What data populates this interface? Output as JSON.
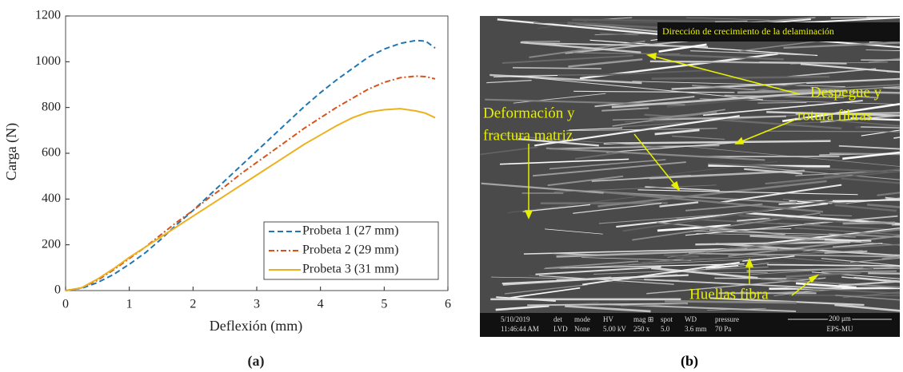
{
  "chart_data": {
    "type": "line",
    "xlabel": "Deflexión (mm)",
    "ylabel": "Carga (N)",
    "caption": "(a)",
    "x": [
      0,
      0.25,
      0.5,
      0.75,
      1,
      1.25,
      1.5,
      1.75,
      2,
      2.25,
      2.5,
      2.75,
      3,
      3.25,
      3.5,
      3.75,
      4,
      4.25,
      4.5,
      4.75,
      5,
      5.25,
      5.5,
      5.65,
      5.8
    ],
    "series": [
      {
        "name": "Probeta 1 (27 mm)",
        "color": "#1f77b4",
        "dash": "dashed",
        "values": [
          0,
          10,
          35,
          70,
          115,
          165,
          225,
          290,
          350,
          415,
          480,
          545,
          610,
          675,
          740,
          805,
          865,
          920,
          970,
          1020,
          1055,
          1080,
          1093,
          1090,
          1060
        ]
      },
      {
        "name": "Probeta 2 (29 mm)",
        "color": "#d95319",
        "dash": "dashdot",
        "values": [
          0,
          12,
          45,
          90,
          140,
          190,
          245,
          300,
          350,
          405,
          455,
          510,
          560,
          610,
          660,
          710,
          755,
          800,
          840,
          880,
          910,
          930,
          937,
          935,
          925
        ]
      },
      {
        "name": "Probeta 3 (31 mm)",
        "color": "#edb120",
        "dash": "solid",
        "values": [
          0,
          12,
          50,
          95,
          145,
          190,
          235,
          280,
          325,
          370,
          415,
          460,
          505,
          550,
          595,
          640,
          680,
          720,
          755,
          780,
          790,
          795,
          785,
          775,
          755
        ]
      }
    ],
    "xlim": [
      0,
      6
    ],
    "ylim": [
      0,
      1200
    ],
    "xticks": [
      0,
      1,
      2,
      3,
      4,
      5,
      6
    ],
    "yticks": [
      0,
      200,
      400,
      600,
      800,
      1000,
      1200
    ],
    "legend": "lower right",
    "grid": false
  },
  "image": {
    "caption": "(b)",
    "annotations": {
      "direction": "Dirección de crecimiento de la delaminación",
      "debond_1": "Despegue y",
      "debond_2": "rotura fibras",
      "deform_1": "Deformación y",
      "deform_2": "fractura matriz",
      "prints": "Huellas fibra"
    },
    "info_bar": {
      "date": "5/10/2019",
      "time": "11:46:44 AM",
      "det_h": "det",
      "det": "LVD",
      "mode_h": "mode",
      "mode": "None",
      "hv_h": "HV",
      "hv": "5.00 kV",
      "mag_h": "mag ⊞",
      "mag": "250 x",
      "spot_h": "spot",
      "spot": "5.0",
      "wd_h": "WD",
      "wd": "3.6 mm",
      "pressure_h": "pressure",
      "pressure": "70 Pa",
      "scale": "200 μm",
      "lab": "EPS-MU"
    }
  }
}
